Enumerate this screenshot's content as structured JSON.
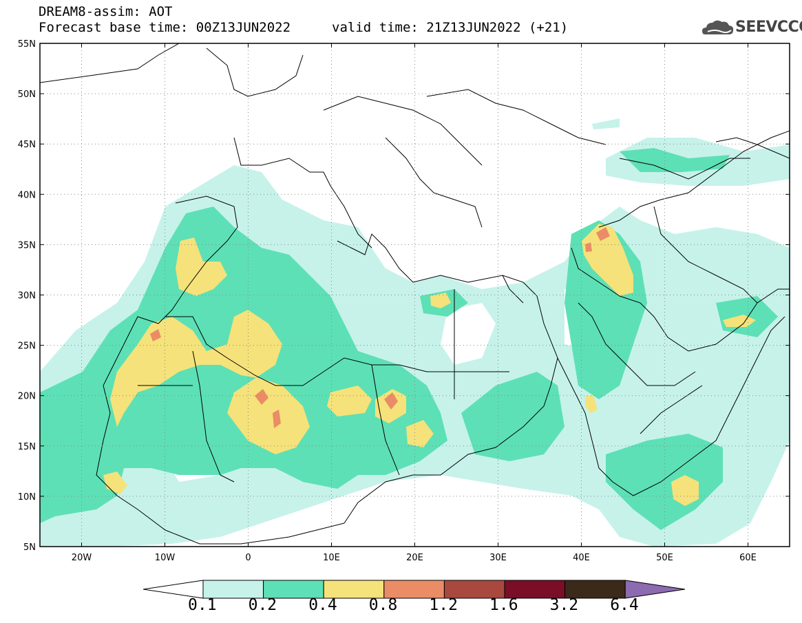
{
  "header": {
    "title_line1": "DREAM8-assim: AOT",
    "base_time": "Forecast base time: 00Z13JUN2022",
    "valid_time": "valid time: 21Z13JUN2022 (+21)"
  },
  "logo": {
    "text": "SEEVCCC",
    "icon": "cloud-logo-icon"
  },
  "map": {
    "lat_labels": [
      "55N",
      "50N",
      "45N",
      "40N",
      "35N",
      "30N",
      "25N",
      "20N",
      "15N",
      "10N",
      "5N"
    ],
    "lon_labels": [
      "20W",
      "10W",
      "0",
      "10E",
      "20E",
      "30E",
      "40E",
      "50E",
      "60E"
    ],
    "lat_range": [
      5,
      55
    ],
    "lon_range": [
      -25,
      65
    ],
    "grid": "dotted"
  },
  "colorbar": {
    "levels": [
      "0.1",
      "0.2",
      "0.4",
      "0.8",
      "1.2",
      "1.6",
      "3.2",
      "6.4"
    ],
    "colors": [
      "#c6f2ea",
      "#5de0b5",
      "#f5e27a",
      "#ea8c65",
      "#a9483e",
      "#7b0e27",
      "#3b2a19"
    ],
    "under_color": "#ffffff",
    "over_color": "#8c6bb1"
  }
}
